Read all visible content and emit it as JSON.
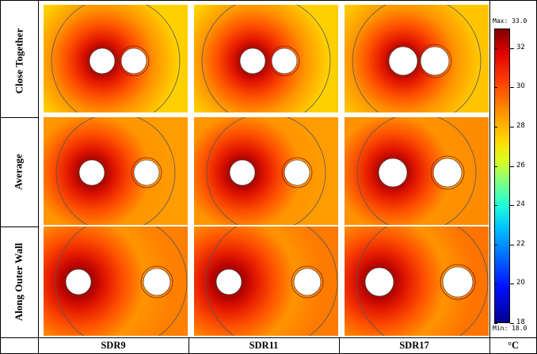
{
  "rows": [
    {
      "label": "Close Together"
    },
    {
      "label": "Average"
    },
    {
      "label": "Along Outer Wall"
    }
  ],
  "columns": [
    {
      "label": "SDR9"
    },
    {
      "label": "SDR11"
    },
    {
      "label": "SDR17"
    }
  ],
  "colorbar": {
    "max_text": "Max: 33.0",
    "min_text": "Min: 18.0",
    "unit": "°C",
    "range": [
      18,
      33
    ],
    "ticks": [
      "32",
      "30",
      "28",
      "26",
      "24",
      "22",
      "20",
      "18"
    ]
  },
  "panels": [
    {
      "row": 0,
      "col": 0,
      "background": "#ffd000"
    },
    {
      "row": 0,
      "col": 1,
      "background": "#ffd000"
    },
    {
      "row": 0,
      "col": 2,
      "background": "#ffc600"
    },
    {
      "row": 1,
      "col": 0,
      "background": "#ff9c00"
    },
    {
      "row": 1,
      "col": 1,
      "background": "#ff9c00"
    },
    {
      "row": 1,
      "col": 2,
      "background": "#ff8c00"
    },
    {
      "row": 2,
      "col": 0,
      "background": "#ff7f00"
    },
    {
      "row": 2,
      "col": 1,
      "background": "#ff7a00"
    },
    {
      "row": 2,
      "col": 2,
      "background": "#ff7400"
    }
  ]
}
